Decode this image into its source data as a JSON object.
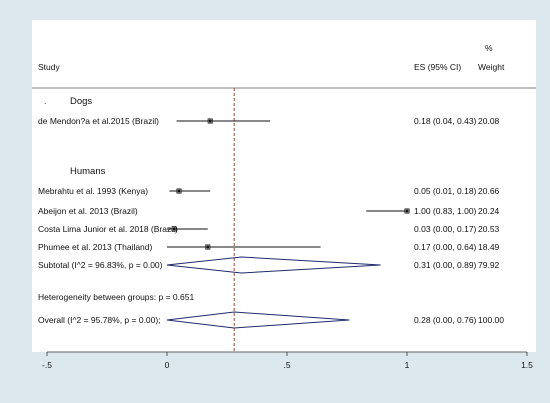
{
  "chart_data": {
    "type": "forest",
    "headers": {
      "study": "Study",
      "es": "ES (95% CI)",
      "weight_symbol": "%",
      "weight": "Weight"
    },
    "groups": [
      {
        "name": "Dogs",
        "marker": ".",
        "studies": [
          {
            "label": "de Mendon?a et al.2015 (Brazil)",
            "es": 0.18,
            "lo": 0.04,
            "hi": 0.43,
            "es_text": "0.18 (0.04, 0.43)",
            "weight": "20.08"
          }
        ]
      },
      {
        "name": "Humans",
        "studies": [
          {
            "label": "Mebrahtu et al. 1993 (Kenya)",
            "es": 0.05,
            "lo": 0.01,
            "hi": 0.18,
            "es_text": "0.05 (0.01, 0.18)",
            "weight": "20.66"
          },
          {
            "label": "Abeijon et al. 2013 (Brazil)",
            "es": 1.0,
            "lo": 0.83,
            "hi": 1.0,
            "es_text": "1.00 (0.83, 1.00)",
            "weight": "20.24"
          },
          {
            "label": "Costa Lima Junior et al. 2018 (Brazil)",
            "es": 0.03,
            "lo": 0.0,
            "hi": 0.17,
            "es_text": "0.03 (0.00, 0.17)",
            "weight": "20.53"
          },
          {
            "label": "Phumee et al. 2013 (Thailand)",
            "es": 0.17,
            "lo": 0.0,
            "hi": 0.64,
            "es_text": "0.17 (0.00, 0.64)",
            "weight": "18.49"
          }
        ],
        "subtotal": {
          "label": "Subtotal  (I^2 = 96.83%, p = 0.00)",
          "es": 0.31,
          "lo": 0.0,
          "hi": 0.89,
          "es_text": "0.31 (0.00, 0.89)",
          "weight": "79.92"
        }
      }
    ],
    "heterogeneity": "Heterogeneity between groups: p = 0.651",
    "overall": {
      "label": "Overall  (I^2 = 95.78%, p = 0.00);",
      "es": 0.28,
      "lo": 0.0,
      "hi": 0.76,
      "es_text": "0.28 (0.00, 0.76)",
      "weight": "100.00"
    },
    "x_ticks": [
      -0.5,
      0,
      0.5,
      1,
      1.5
    ],
    "x_tick_labels": [
      "-.5",
      "0",
      ".5",
      "1",
      "1.5"
    ],
    "xlim": [
      -0.5,
      1.5
    ],
    "reference_line": 0.28,
    "colors": {
      "reference_line": "#c0392b",
      "diamond": "#1f2a6b",
      "line": "#111111",
      "background": "#dde8ee"
    }
  }
}
